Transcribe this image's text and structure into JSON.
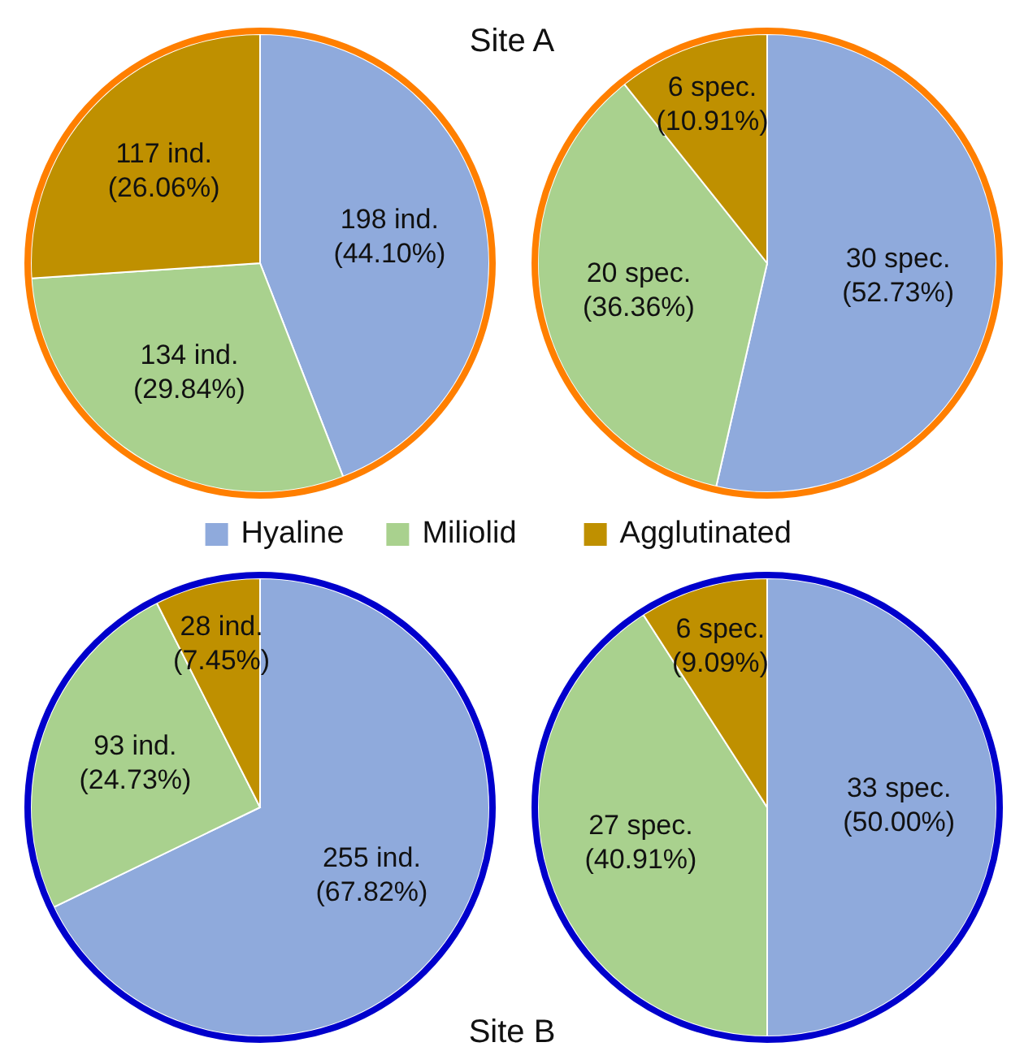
{
  "chart_data": [
    {
      "type": "pie",
      "title": "Site A",
      "legend": "bottom",
      "categories": [
        "Hyaline",
        "Miliolid",
        "Agglutinated"
      ],
      "values": [
        198,
        134,
        117
      ],
      "colors": [
        "#8faadc",
        "#a9d18e",
        "#bf9000"
      ],
      "value_labels": [
        "198 ind.\n(44.10%)",
        "134 ind.\n(29.84%)",
        "117 ind.\n(26.06%)"
      ]
    },
    {
      "type": "pie",
      "values": [
        30,
        20,
        6
      ],
      "colors": [
        "#8faadc",
        "#a9d18e",
        "#bf9000"
      ],
      "value_labels": [
        "30 spec.\n(52.73%)",
        "20 spec.\n(36.36%)",
        "6 spec.\n(10.91%)"
      ]
    },
    {
      "type": "pie",
      "title": "Site B",
      "values": [
        255,
        93,
        28
      ],
      "colors": [
        "#8faadc",
        "#a9d18e",
        "#bf9000"
      ],
      "value_labels": [
        "255 ind.\n(67.82%)",
        "93 ind.\n(24.73%)",
        "28 ind.\n(7.45%)"
      ]
    },
    {
      "type": "pie",
      "values": [
        33,
        27,
        6
      ],
      "colors": [
        "#8faadc",
        "#a9d18e",
        "#bf9000"
      ],
      "value_labels": [
        "33 spec.\n(50.00%)",
        "27 spec.\n(40.91%)",
        "6 spec.\n(9.09%)"
      ]
    }
  ]
}
